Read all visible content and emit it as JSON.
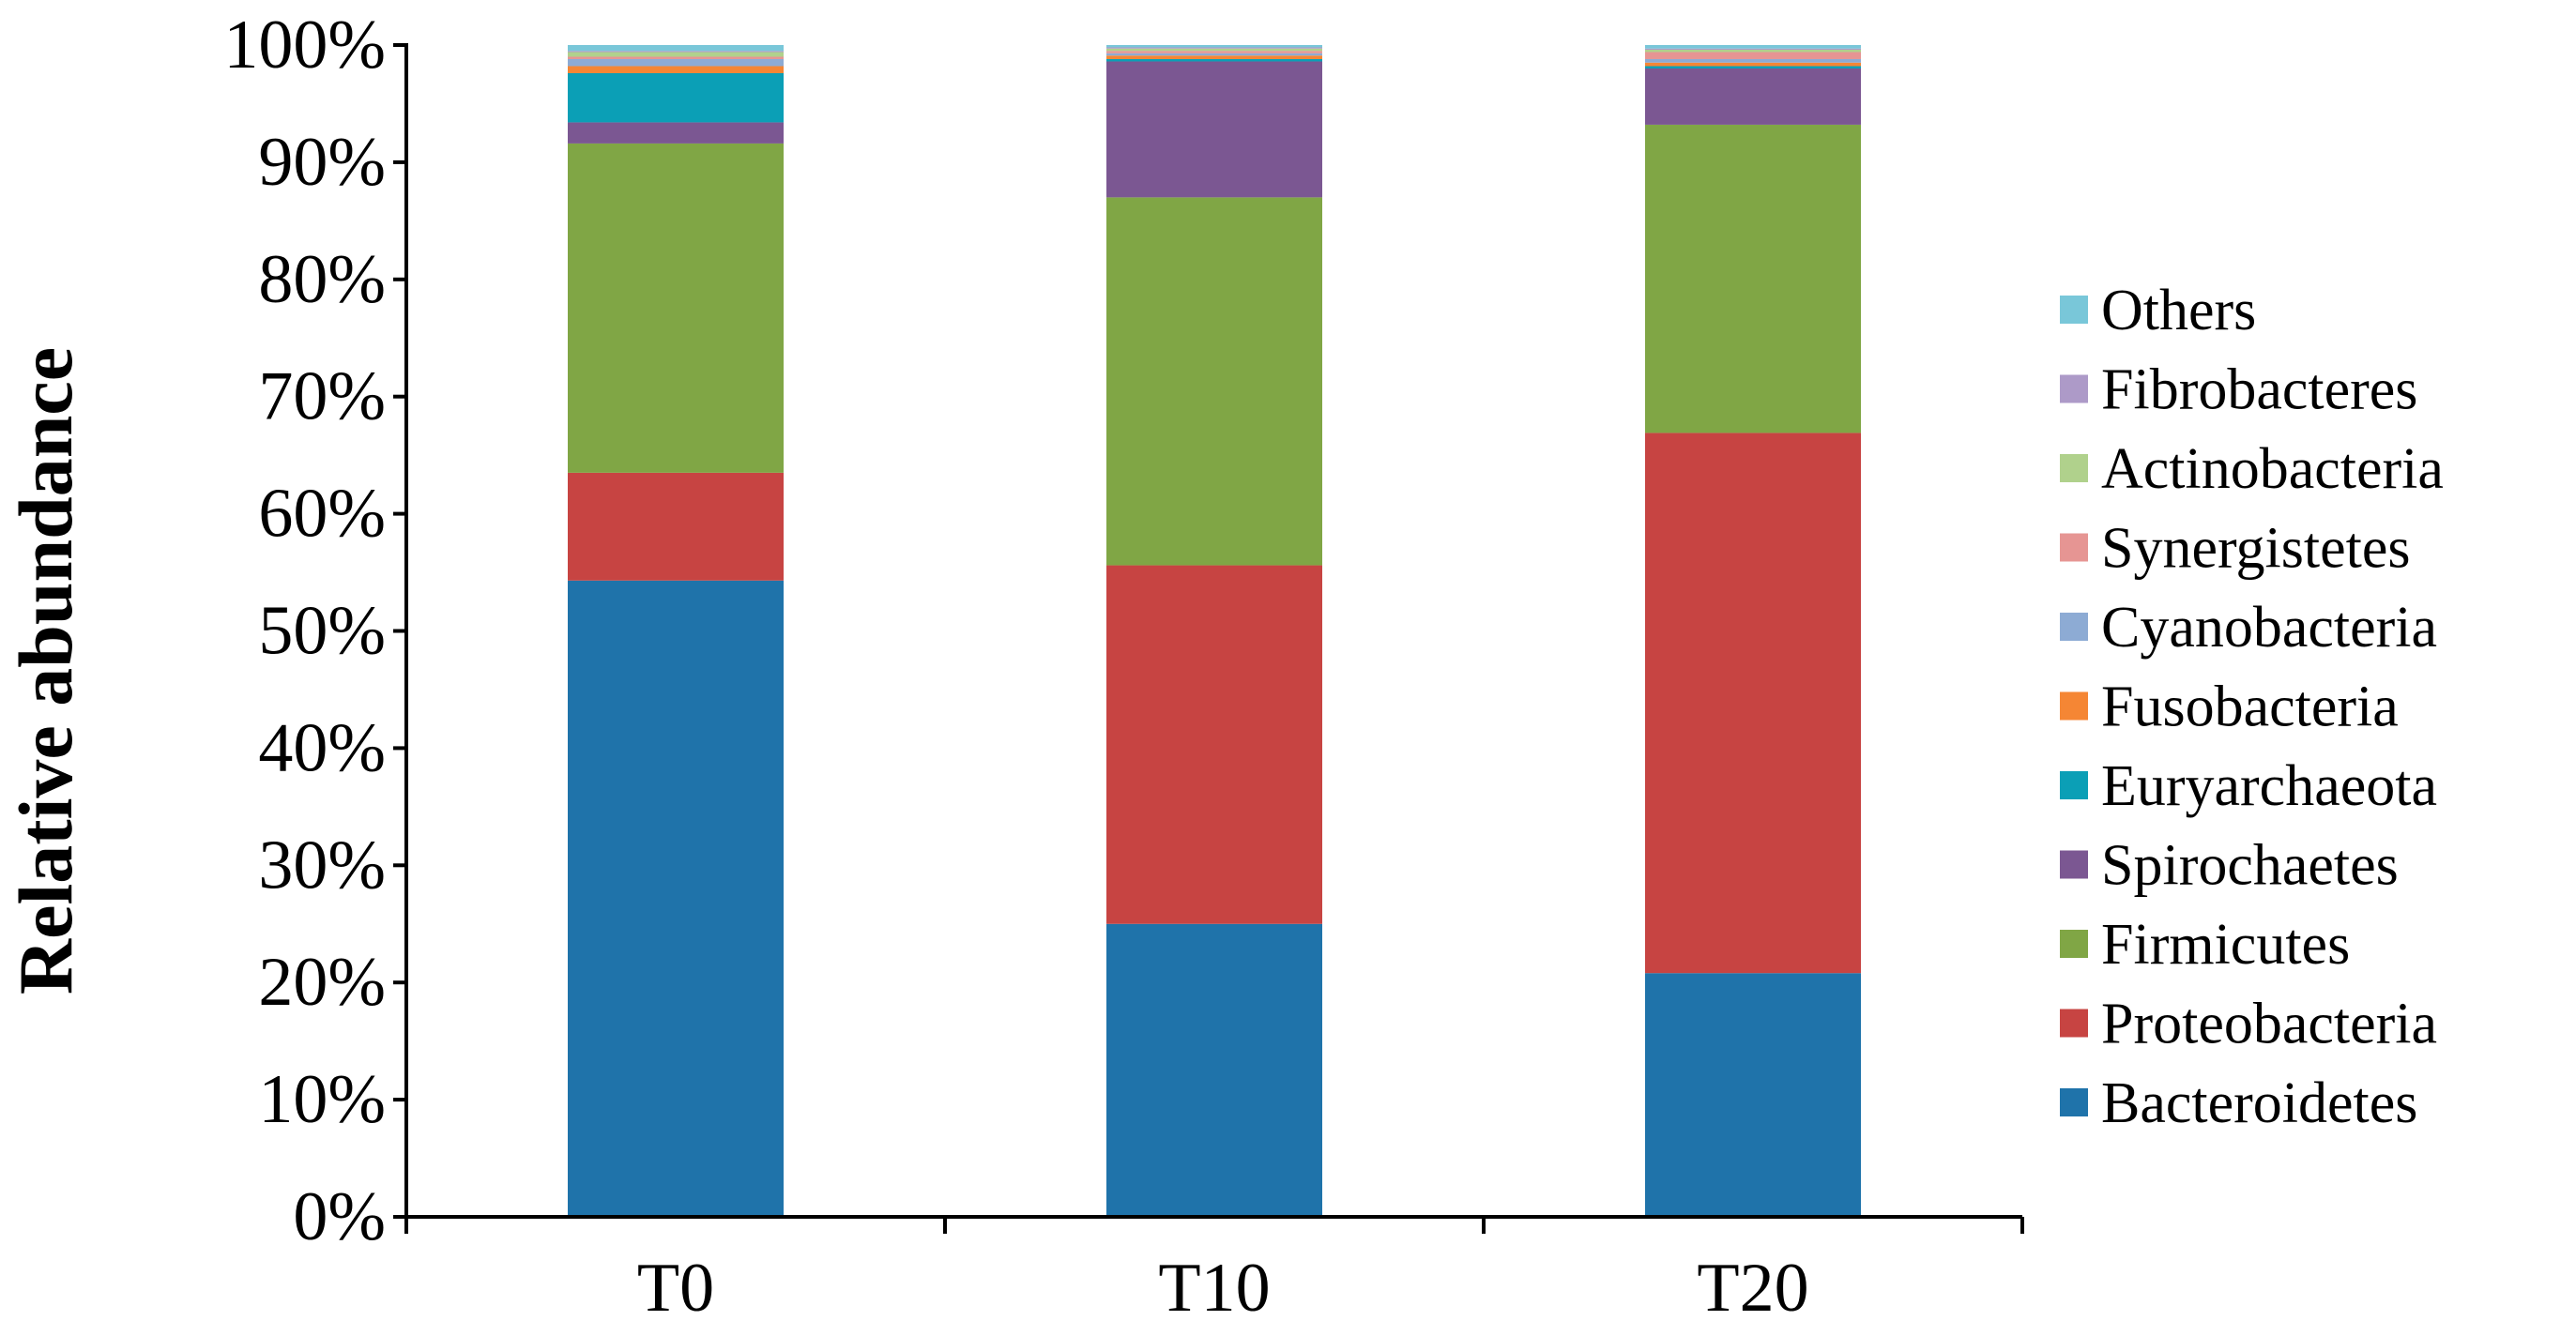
{
  "chart_data": {
    "type": "bar",
    "stacked": true,
    "percent": true,
    "categories": [
      "T0",
      "T10",
      "T20"
    ],
    "ylabel": "Relative abundance",
    "xlabel": "",
    "ylim": [
      0,
      100
    ],
    "yticks": [
      "0%",
      "10%",
      "20%",
      "30%",
      "40%",
      "50%",
      "60%",
      "70%",
      "80%",
      "90%",
      "100%"
    ],
    "legend_position": "right",
    "series": [
      {
        "name": "Bacteroidetes",
        "color": "#1f73aa",
        "values": [
          54.3,
          25.0,
          20.8
        ]
      },
      {
        "name": "Proteobacteria",
        "color": "#c74442",
        "values": [
          9.2,
          30.6,
          46.1
        ]
      },
      {
        "name": "Firmicutes",
        "color": "#80a645",
        "values": [
          28.1,
          31.4,
          26.3
        ]
      },
      {
        "name": "Spirochaetes",
        "color": "#7b5792",
        "values": [
          1.8,
          11.6,
          4.8
        ]
      },
      {
        "name": "Euryarchaeota",
        "color": "#0b9fb6",
        "values": [
          4.2,
          0.2,
          0.2
        ]
      },
      {
        "name": "Fusobacteria",
        "color": "#f58634",
        "values": [
          0.6,
          0.3,
          0.3
        ]
      },
      {
        "name": "Cyanobacteria",
        "color": "#8dabd4",
        "values": [
          0.6,
          0.2,
          0.3
        ]
      },
      {
        "name": "Synergistetes",
        "color": "#e69593",
        "values": [
          0.2,
          0.2,
          0.6
        ]
      },
      {
        "name": "Actinobacteria",
        "color": "#b0d18c",
        "values": [
          0.4,
          0.2,
          0.2
        ]
      },
      {
        "name": "Fibrobacteres",
        "color": "#ad9ac8",
        "values": [
          0.1,
          0.1,
          0.1
        ]
      },
      {
        "name": "Others",
        "color": "#79c7d9",
        "values": [
          0.5,
          0.2,
          0.3
        ]
      }
    ]
  }
}
